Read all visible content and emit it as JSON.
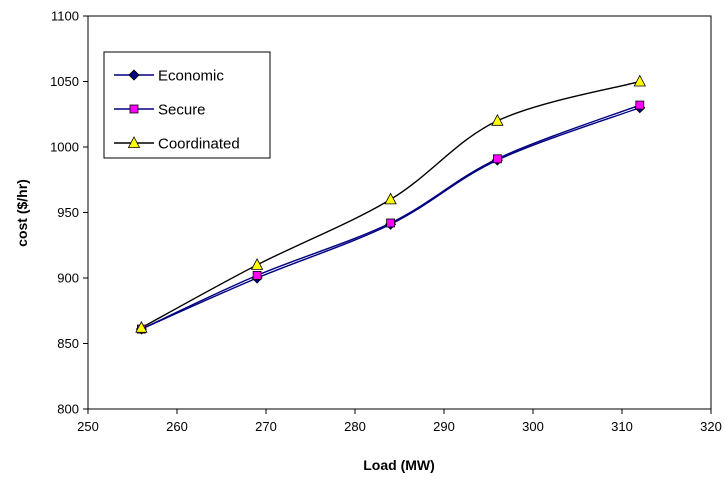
{
  "chart_data": {
    "type": "line",
    "title": "",
    "xlabel": "Load (MW)",
    "ylabel": "cost ($/hr)",
    "xlim": [
      250,
      320
    ],
    "ylim": [
      800,
      1100
    ],
    "xticks": [
      "250",
      "260",
      "270",
      "280",
      "290",
      "300",
      "310",
      "320"
    ],
    "yticks": [
      "800",
      "850",
      "900",
      "950",
      "1000",
      "1050",
      "1100"
    ],
    "grid": false,
    "legend_position": "top-left",
    "smooth": true,
    "series": [
      {
        "name": "Economic",
        "marker": "diamond",
        "color": "#000080",
        "marker_color": "#000080",
        "x": [
          256,
          269,
          284,
          296,
          312
        ],
        "y": [
          861,
          900,
          941,
          990,
          1030
        ]
      },
      {
        "name": "Secure",
        "marker": "square",
        "color": "#000080",
        "marker_color": "#FF00FF",
        "x": [
          256,
          269,
          284,
          296,
          312
        ],
        "y": [
          861,
          902,
          942,
          991,
          1032
        ]
      },
      {
        "name": "Coordinated",
        "marker": "triangle",
        "color": "#000000",
        "marker_color": "#FFFF00",
        "x": [
          256,
          269,
          284,
          296,
          312
        ],
        "y": [
          862,
          910,
          960,
          1020,
          1050
        ]
      }
    ]
  }
}
